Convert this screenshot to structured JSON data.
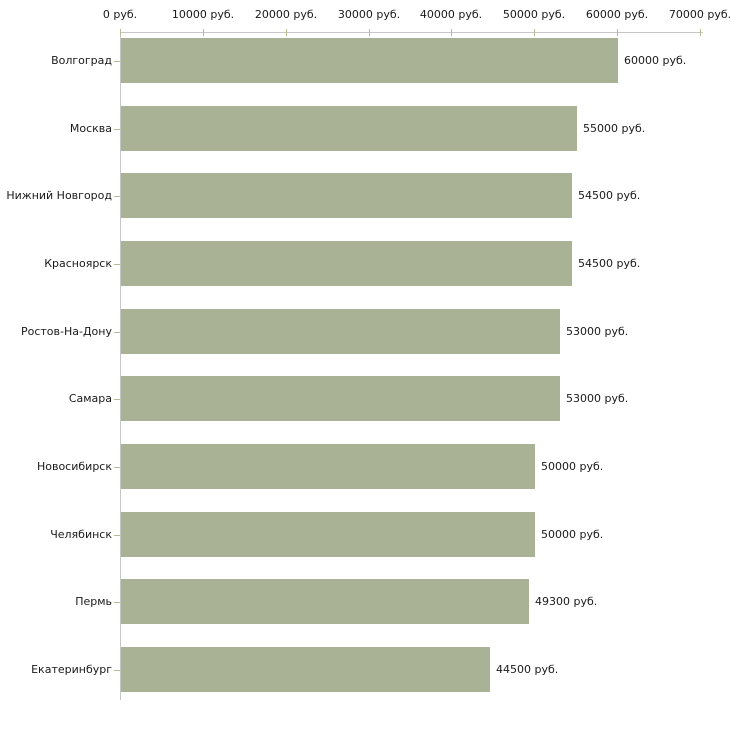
{
  "chart_data": {
    "type": "bar",
    "orientation": "horizontal",
    "title": "",
    "xlabel": "",
    "ylabel": "",
    "categories": [
      "Волгоград",
      "Москва",
      "Нижний Новгород",
      "Красноярск",
      "Ростов-На-Дону",
      "Самара",
      "Новосибирск",
      "Челябинск",
      "Пермь",
      "Екатеринбург"
    ],
    "values": [
      60000,
      55000,
      54500,
      54500,
      53000,
      53000,
      50000,
      50000,
      49300,
      44500
    ],
    "value_labels": [
      "60000 руб.",
      "55000 руб.",
      "54500 руб.",
      "54500 руб.",
      "53000 руб.",
      "53000 руб.",
      "50000 руб.",
      "50000 руб.",
      "49300 руб.",
      "44500 руб."
    ],
    "x_ticks": [
      0,
      10000,
      20000,
      30000,
      40000,
      50000,
      60000,
      70000
    ],
    "x_tick_labels": [
      "0 руб.",
      "10000 руб.",
      "20000 руб.",
      "30000 руб.",
      "40000 руб.",
      "50000 руб.",
      "60000 руб.",
      "70000 руб."
    ],
    "xlim": [
      0,
      70000
    ],
    "grid": false,
    "legend": false,
    "colors": {
      "bar": "#a9b294",
      "axis_line": "#c6c6c6",
      "tick_mark": "#b9bc8f",
      "text": "#1a1a1a",
      "background": "#ffffff"
    }
  }
}
